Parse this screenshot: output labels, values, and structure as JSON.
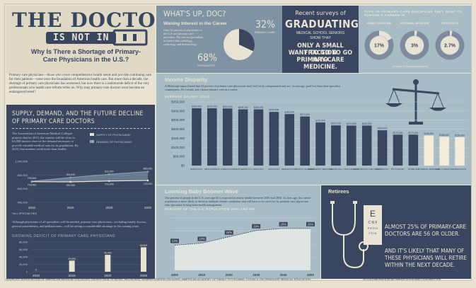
{
  "header": {
    "title": "THE DOCTOR",
    "is_not_in": "IS NOT IN",
    "subtitle": "Why Is There a Shortage of Primary-Care Physicians in the U.S.?",
    "intro": "Primary-care physicians—those who cover comprehensive health needs and provide continuing care for their patients—were once the foundation of American health care. But more than a decade, the shortage of primary care physicians has worsened, but now there is a nationwide deficit of the very professionals who health care reform relies on. Why may primary-care doctors soon become an endangered breed?"
  },
  "supply": {
    "title": "SUPPLY, DEMAND, AND THE FUTURE DECLINE OF PRIMARY CARE DOCTORS",
    "text": "The Association of American Medical Colleges projects that by 2015, the country will be close to 63,000 doctors short of the demand necessary to provide valuable medical care for its population. By 2025, that number could more than double.",
    "legend_supply": "SUPPLY OF PHYSICIANS*",
    "legend_demand": "DEMAND OF PHYSICIANS*",
    "footnote": "*ALL SPECIALTIES",
    "text2": "Although physicians of all specialties will be needed, primary-care physicians—including family doctors, general practitioners, and pediatricians—will be seeing a considerable shortage in the coming years.",
    "deficit_title": "GROWING DEFICIT OF PRIMARY CARE PHYSICIANS"
  },
  "supply_chart": {
    "type": "line",
    "x": [
      2010,
      2015,
      2020,
      2025
    ],
    "ylabels": [
      "1,000,000",
      "800,000",
      "600,000",
      "400,000"
    ],
    "series": [
      {
        "name": "SUPPLY OF PHYSICIANS*",
        "values": [
          703000,
          700000,
          713000,
          720000
        ],
        "labels": [
          "703,000",
          "700,000",
          "713,000",
          "720,000"
        ]
      },
      {
        "name": "DEMAND OF PHYSICIANS*",
        "values": [
          709000,
          763000,
          811000,
          850000
        ],
        "labels": [
          "709,000",
          "763,000",
          "811,000",
          "850,000"
        ]
      }
    ],
    "xlabels": [
      "2010",
      "2015",
      "2020",
      "2025"
    ],
    "ylim": [
      400000,
      1000000
    ],
    "colors": {
      "supply": "#e9e3d3",
      "demand": "#8ea6b3"
    }
  },
  "deficit_chart": {
    "type": "bar",
    "categories": [
      "2010",
      "2015",
      "2020",
      "2025"
    ],
    "values": [
      0,
      29800,
      45400,
      65800
    ],
    "labels": [
      "0",
      "29,800",
      "45,400",
      "65,800"
    ],
    "ylabels": [
      "80,000",
      "60,000",
      "40,000",
      "20,000",
      "0"
    ],
    "ylim": [
      0,
      80000
    ]
  },
  "whats_up": {
    "title": "WHAT'S UP, DOC?",
    "waning_title": "Waning Interest in the Career",
    "waning_text": "Only 32 percent of physicians in the U.S. are primary-care providers. The rest are specialists in careers like radiology, cardiology and dermatology.",
    "pct_primary": "32%",
    "label_primary": "PRIMARY CARE",
    "pct_specialists": "68%",
    "label_specialists": "SPECIALISTS",
    "pie_values": [
      32,
      68
    ]
  },
  "surveys": {
    "line1": "Recent surveys of",
    "line2": "GRADUATING",
    "line3": "MEDICAL SCHOOL SENIORS",
    "line4": "SHOW THAT",
    "line5": "ONLY A SMALL FRACTION",
    "line6": "WANT TO GO TO GO INTO",
    "line7": "PRIMARY-CARE MEDICINE."
  },
  "discipline": {
    "title": "TYPE OF PRIMARY-CARE DISCIPLINE THEY WANT TO PURSUE A CAREER IN",
    "items": [
      {
        "label": "FAMILY MEDICINE",
        "pct": "17%",
        "value": 17
      },
      {
        "label": "INTERNAL MEDICINE",
        "pct": "3%",
        "value": 3
      },
      {
        "label": "PEDIATRICS",
        "pct": "2.7%",
        "value": 2.7
      }
    ],
    "note": "(Percent of all medical students)"
  },
  "income": {
    "title": "Income Disparity",
    "text": "A Medscape report found that 54 percent of primary-care physicians don't feel fairly compensated and are, on average, paid less than their specialist counterparts. As a result, few choose primary care as a career.",
    "subtitle": "AVERAGE SALARY (2011)"
  },
  "income_chart": {
    "type": "bar",
    "categories": [
      "RADIOLOGY",
      "ORTHOPEDICS",
      "CARDIOLOGY",
      "ANESTHESIOLOGY",
      "UROLOGY",
      "ONCOLOGY",
      "DERMATOLOGY",
      "PLASTIC SURGERY",
      "EMERGENCY MEDICINE",
      "NEUROLOGY",
      "CRITICAL CARE",
      "OBSTETRICS/GYNECOLOGY",
      "NEUROLOGY",
      "PSYCHIATRY",
      "DIABETES",
      "INTERNAL MEDICINE",
      "FAMILY MEDICINE",
      "PEDIATRICS"
    ],
    "values": [
      315000,
      315000,
      314000,
      309000,
      309000,
      295000,
      283000,
      270000,
      237000,
      221000,
      220000,
      220000,
      194000,
      170000,
      170000,
      165000,
      158000,
      156000
    ],
    "labels": [
      "$315,000",
      "$315,000",
      "$314,000",
      "$309,000",
      "$309,000",
      "$295,000",
      "$283,000",
      "$270,000",
      "$237,000",
      "$221,000",
      "$220,000",
      "$220,000",
      "$194,000",
      "$170,000",
      "$170,000",
      "$165,000",
      "$158,000",
      "$156,000"
    ],
    "highlight": [
      15,
      16,
      17
    ],
    "ylabels": [
      "$350,000",
      "$300,000",
      "$250,000",
      "$200,000",
      "$150,000",
      "$100,000",
      "$50,000",
      "$0"
    ],
    "ylim": [
      0,
      350000
    ],
    "colors": {
      "bar": "#3a4560",
      "highlight": "#f2ecd9"
    }
  },
  "boomer": {
    "title": "Looming Baby Boomer Wave",
    "text": "The percent of people in the U.S. over age 65 is expected to nearly double between 2000 and 2050. As they age, this senior population is more likely to develop multiple chronic conditions and will have to be cared for by primary-care physicians who specialize in long-term health management.",
    "subtitle": "PERCENT OF THE U.S. POPULATION WHO ARE 65+"
  },
  "boomer_chart": {
    "type": "area",
    "x": [
      2000,
      2010,
      2020,
      2030,
      2040,
      2050
    ],
    "values": [
      12,
      13,
      16,
      19,
      20,
      20
    ],
    "labels": [
      "12%",
      "13%",
      "16%",
      "19%",
      "20%",
      "20%"
    ],
    "xlabels": [
      "2000",
      "2010",
      "2020",
      "2030",
      "2040",
      "2050"
    ],
    "ylim": [
      0,
      25
    ]
  },
  "retirees": {
    "title": "Retirees",
    "text1": "ALMOST 25% OF PRIMARY-CARE DOCTORS ARE 56 OR OLDER.",
    "text2": "AND IT'S LIKELY THAT MANY OF THESE PHYSICIANS WILL RETIRE WITHIN THE NEXT DECADE.",
    "eye_chart": [
      "E",
      "C N F",
      "P E R D",
      "F E I N"
    ]
  },
  "footer": {
    "sources": "SOURCES: ASSOCIATION OF AMERICAN MEDICAL COLLEGES, KAISER HEALTH NEWS, MEDSCAPE, ADMINISTRATION ON AGING, AMERICAN ACADEMY OF FAMILY PHYSICIANS, COUNCIL ON GRADUATE MEDICAL EDUCATION",
    "credit": "A COLLABORATION BETWEEN GOOD AND COLUMN FIVE"
  }
}
